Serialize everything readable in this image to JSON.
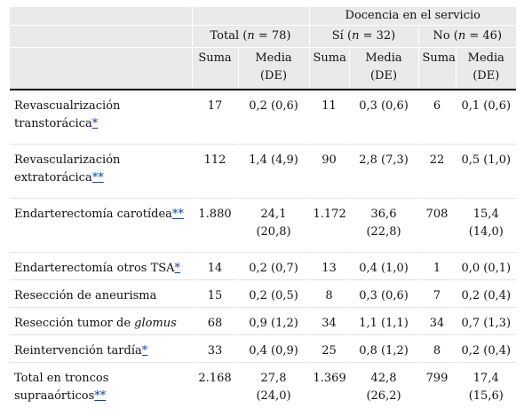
{
  "header": {
    "group_label": "Docencia en el servicio",
    "total_label_pre": "Total (",
    "total_label_n": "n",
    "total_label_post": " = 78)",
    "si_label_pre": "Sí (",
    "si_label_n": "n",
    "si_label_post": " = 32)",
    "no_label_pre": "No (",
    "no_label_n": "n",
    "no_label_post": " = 46)",
    "suma": "Suma",
    "media": "Media",
    "de": "(DE)"
  },
  "rows": [
    {
      "label": "Revascualrización transtorácica",
      "label_tail": "",
      "note": "*",
      "total_suma": "17",
      "total_media": "0,2 (0,6)",
      "si_suma": "11",
      "si_media": "0,3 (0,6)",
      "no_suma": "6",
      "no_media": "0,1 (0,6)"
    },
    {
      "label": "Revascularización extratorácica",
      "label_tail": "",
      "note": "**",
      "total_suma": "112",
      "total_media": "1,4 (4,9)",
      "si_suma": "90",
      "si_media": "2,8 (7,3)",
      "no_suma": "22",
      "no_media": "0,5 (1,0)"
    },
    {
      "label": "Endarterectomía carotídea",
      "label_tail": "",
      "note": "**",
      "total_suma": "1.880",
      "total_media": "24,1 (20,8)",
      "si_suma": "1.172",
      "si_media": "36,6 (22,8)",
      "no_suma": "708",
      "no_media": "15,4 (14,0)"
    },
    {
      "label": "Endarterectomía otros TSA",
      "label_tail": "",
      "note": "*",
      "total_suma": "14",
      "total_media": "0,2 (0,7)",
      "si_suma": "13",
      "si_media": "0,4 (1,0)",
      "no_suma": "1",
      "no_media": "0,0 (0,1)"
    },
    {
      "label": "Resección de aneurisma",
      "label_tail": "",
      "note": "",
      "total_suma": "15",
      "total_media": "0,2 (0,5)",
      "si_suma": "8",
      "si_media": "0,3 (0,6)",
      "no_suma": "7",
      "no_media": "0,2 (0,4)"
    },
    {
      "label": "Resección tumor de ",
      "label_tail": "glomus",
      "note": "",
      "total_suma": "68",
      "total_media": "0,9 (1,2)",
      "si_suma": "34",
      "si_media": "1,1 (1,1)",
      "no_suma": "34",
      "no_media": "0,7 (1,3)"
    },
    {
      "label": "Reintervención tardía",
      "label_tail": "",
      "note": "*",
      "total_suma": "33",
      "total_media": "0,4 (0,9)",
      "si_suma": "25",
      "si_media": "0,8 (1,2)",
      "no_suma": "8",
      "no_media": "0,2 (0,4)"
    },
    {
      "label": "Total en troncos supraaórticos",
      "label_tail": "",
      "note": "**",
      "total_suma": "2.168",
      "total_media": "27,8 (24,0)",
      "si_suma": "1.369",
      "si_media": "42,8 (26,2)",
      "no_suma": "799",
      "no_media": "17,4 (15,6)"
    }
  ]
}
